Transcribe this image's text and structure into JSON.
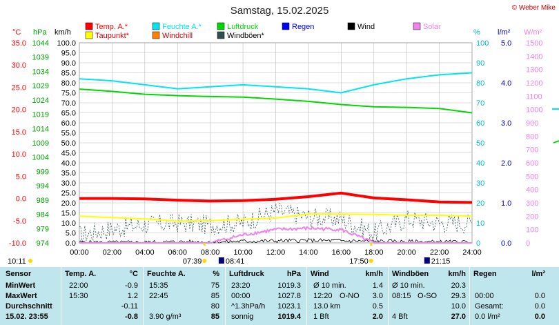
{
  "title": "Samstag, 15.02.2025",
  "credit": "© Weber Mike",
  "colors": {
    "temp": "#ff0000",
    "dew": "#ffff00",
    "hum": "#00e5ee",
    "press": "#00d800",
    "wind": "#000000",
    "gust": "#2f4f4f",
    "solar": "#ee82ee",
    "rain": "#0000ff",
    "windchill": "#ff8000",
    "table_bg": "#bfe6ec",
    "grid": "#bbbbbb"
  },
  "legend": {
    "row1": [
      {
        "label": "Temp. A.*",
        "color": "#ff0000"
      },
      {
        "label": "Feuchte A.*",
        "color": "#00e5ee"
      },
      {
        "label": "Luftdruck",
        "color": "#00d800"
      },
      {
        "label": "Regen",
        "color": "#0000ff"
      },
      {
        "label": "Wind",
        "color": "#000000"
      },
      {
        "label": "Solar",
        "color": "#ee82ee"
      }
    ],
    "row2": [
      {
        "label": "Taupunkt*",
        "color": "#ffff00"
      },
      {
        "label": "Windchill",
        "color": "#ff8000"
      },
      {
        "label": "Windböen*",
        "color": "#2f4f4f"
      }
    ]
  },
  "axis_units": {
    "temp": "°C",
    "press": "hPa",
    "wind": "km/h",
    "hum": "%",
    "rain": "l/m²",
    "solar": "W/m²"
  },
  "axis_ticks": {
    "temp": [
      "35.0",
      "30.0",
      "25.0",
      "20.0",
      "15.0",
      "10.0",
      "5.0",
      "0.0",
      "-5.0",
      "-10.0"
    ],
    "press": [
      "1044",
      "1039",
      "1034",
      "1029",
      "1024",
      "1019",
      "1014",
      "1009",
      "1004",
      "999",
      "994",
      "989",
      "984",
      "979",
      "974"
    ],
    "wind": [
      "100.0",
      "95.0",
      "90.0",
      "85.0",
      "80.0",
      "75.0",
      "70.0",
      "65.0",
      "60.0",
      "55.0",
      "50.0",
      "45.0",
      "40.0",
      "35.0",
      "30.0",
      "25.0",
      "20.0",
      "15.0",
      "10.0",
      "5.0",
      "0.0"
    ],
    "hum": [
      "100",
      "90",
      "80",
      "70",
      "60",
      "50",
      "40",
      "30",
      "20",
      "10",
      "0"
    ],
    "rain": [
      "5.0",
      "4.0",
      "3.0",
      "2.0",
      "1.0",
      "0.0"
    ],
    "solar": [
      "1500",
      "1400",
      "1300",
      "1200",
      "1100",
      "1000",
      "900",
      "800",
      "700",
      "600",
      "500",
      "400",
      "300",
      "200",
      "100",
      "0"
    ],
    "time": [
      "00:00",
      "02:00",
      "04:00",
      "06:00",
      "08:00",
      "10:00",
      "12:00",
      "14:00",
      "16:00",
      "18:00",
      "20:00",
      "22:00",
      "24:00"
    ]
  },
  "sun": {
    "rise": "07:39",
    "set": "17:50",
    "day_start": "10:11",
    "moon_rise": "08:41",
    "moon_set": "21:15"
  },
  "chart_data": {
    "type": "line",
    "title": "Samstag, 15.02.2025",
    "x": [
      "00:00",
      "02:00",
      "04:00",
      "06:00",
      "08:00",
      "10:00",
      "12:00",
      "14:00",
      "16:00",
      "18:00",
      "20:00",
      "22:00",
      "24:00"
    ],
    "xlim": [
      "00:00",
      "24:00"
    ],
    "series": [
      {
        "name": "Temp. A.*",
        "unit": "°C",
        "values": [
          0.0,
          0.0,
          -0.1,
          -0.4,
          -0.6,
          -0.5,
          -0.2,
          0.4,
          1.2,
          0.1,
          -0.3,
          -0.8,
          -0.9
        ]
      },
      {
        "name": "Taupunkt*",
        "unit": "°C",
        "values": [
          -4.0,
          -4.3,
          -4.6,
          -5.1,
          -5.0,
          -4.7,
          -4.4,
          -3.5,
          -3.5,
          -3.6,
          -3.8,
          -3.8,
          -4.0
        ]
      },
      {
        "name": "Feuchte A.*",
        "unit": "%",
        "values": [
          82,
          81,
          79,
          77,
          78,
          79,
          78,
          77,
          75,
          79,
          82,
          84,
          85
        ]
      },
      {
        "name": "Luftdruck",
        "unit": "hPa",
        "values": [
          1027.8,
          1027.0,
          1026.0,
          1025.5,
          1025.2,
          1025.0,
          1024.3,
          1023.5,
          1022.4,
          1021.6,
          1021.4,
          1021.0,
          1019.5
        ]
      },
      {
        "name": "Wind",
        "unit": "km/h",
        "values": [
          0.3,
          0.2,
          0.3,
          0.5,
          0.4,
          0.8,
          1.0,
          1.2,
          1.0,
          0.8,
          0.6,
          0.5,
          0.3
        ]
      },
      {
        "name": "Windböen*",
        "unit": "km/h",
        "values": [
          4,
          7,
          9,
          10,
          9,
          10,
          16,
          13,
          12,
          5,
          12,
          10,
          10
        ]
      },
      {
        "name": "Solar",
        "unit": "W/m²",
        "values": [
          0,
          0,
          0,
          0,
          0,
          60,
          100,
          110,
          100,
          0,
          0,
          0,
          0
        ]
      }
    ],
    "ylim_temp": [
      -10,
      35
    ],
    "ylim_press": [
      974,
      1044
    ],
    "ylim_wind": [
      0,
      100
    ],
    "ylim_hum": [
      0,
      100
    ],
    "ylim_rain": [
      0,
      5
    ],
    "ylim_solar": [
      0,
      1500
    ],
    "grid": true
  },
  "table": {
    "headers": {
      "sensor": "Sensor",
      "temp": "Temp. A.",
      "temp_unit": "°C",
      "hum": "Feuchte A.",
      "hum_unit": "%",
      "press": "Luftdruck",
      "press_unit": "hPa",
      "wind": "Wind",
      "wind_unit": "km/h",
      "gust": "Windböen",
      "gust_unit": "km/h",
      "rain": "Regen",
      "rain_unit": "l/m²"
    },
    "rows": [
      {
        "label": "MinWert",
        "temp_time": "22:00",
        "temp_val": "-0.9",
        "hum_time": "15:35",
        "hum_val": "75",
        "press_time": "23:20",
        "press_val": "1019.3",
        "wind_time": "Ø 10 min.",
        "wind_val": "1.4",
        "gust_time": "Ø 10 min.",
        "gust_val": "20.3",
        "rain_time": "",
        "rain_val": ""
      },
      {
        "label": "MaxWert",
        "temp_time": "15:30",
        "temp_val": "1.2",
        "hum_time": "22:45",
        "hum_val": "85",
        "press_time": "00:00",
        "press_val": "1027.8",
        "wind_time": "12:20",
        "wind_dir": "O-NO",
        "wind_val": "3.0",
        "gust_time": "08:15",
        "gust_dir": "O-SO",
        "gust_val": "29.3",
        "rain_time": "00:00",
        "rain_val": "0.0"
      },
      {
        "label": "Durchschnitt",
        "temp_time": "",
        "temp_val": "-0.11",
        "hum_time": "",
        "hum_val": "80",
        "press_time": "^1.3hPa/h",
        "press_val": "1023.1",
        "wind_time": "13.0 km",
        "wind_val": "0.5",
        "gust_time": "",
        "gust_val": "10.0",
        "rain_time": "Gesamt:",
        "rain_val": "0.0"
      },
      {
        "label": "15.02. 23:55",
        "temp_time": "",
        "temp_val": "-0.8",
        "hum_time": "3.90 g/m³",
        "hum_val": "85",
        "press_time": "sonnig",
        "press_val": "1019.4",
        "wind_time": "1 Bft",
        "wind_val": "2.0",
        "gust_time": "4 Bft",
        "gust_val": "27.0",
        "rain_time": "0.0 l/m²",
        "rain_val": "0.0"
      }
    ]
  }
}
